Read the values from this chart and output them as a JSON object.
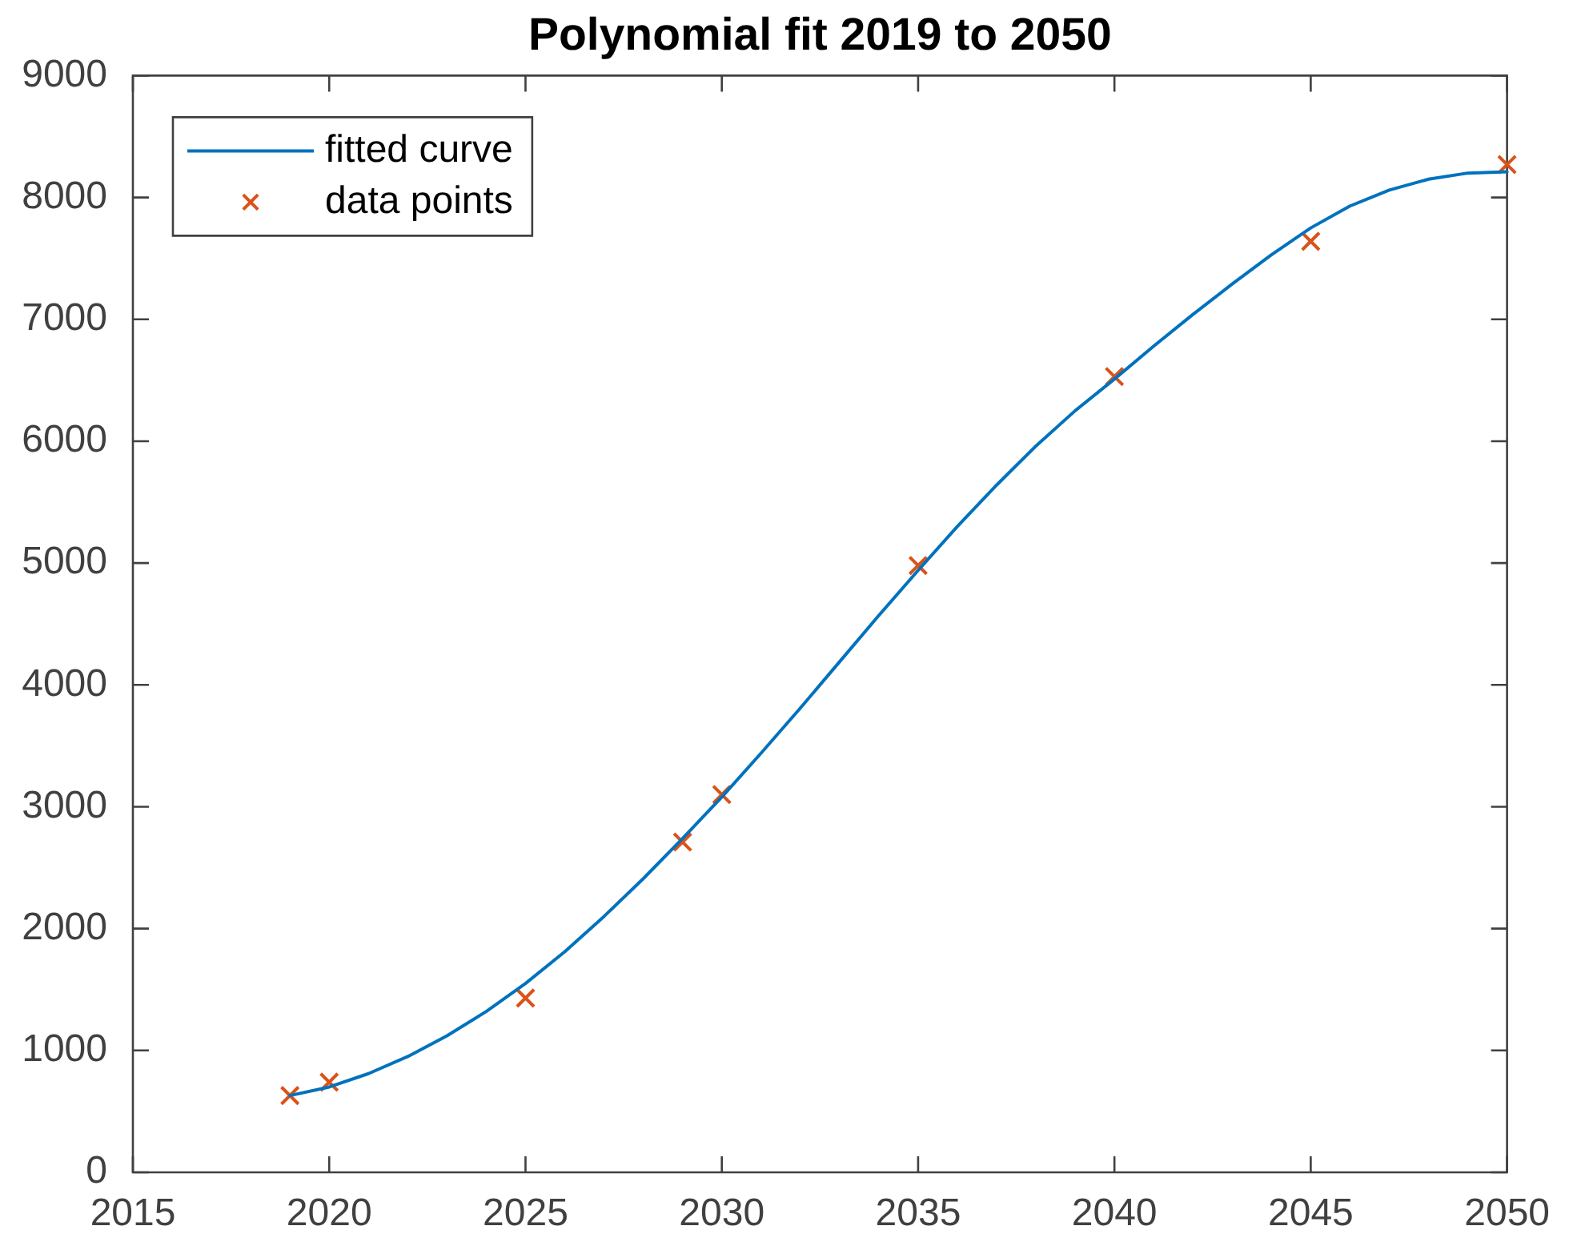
{
  "chart_data": {
    "type": "line",
    "title": "Polynomial fit 2019 to 2050",
    "xlim": [
      2015,
      2050
    ],
    "xticks": [
      2015,
      2020,
      2025,
      2030,
      2035,
      2040,
      2045,
      2050
    ],
    "ylim": [
      0,
      9000
    ],
    "yticks": [
      0,
      1000,
      2000,
      3000,
      4000,
      5000,
      6000,
      7000,
      8000,
      9000
    ],
    "grid": false,
    "legend": "top left",
    "series": [
      {
        "name": "fitted curve",
        "type": "line",
        "color": "#0072bd",
        "marker": "none",
        "x": [
          2019,
          2020,
          2021,
          2022,
          2023,
          2024,
          2025,
          2026,
          2027,
          2028,
          2029,
          2030,
          2031,
          2032,
          2033,
          2034,
          2035,
          2036,
          2037,
          2038,
          2039,
          2040,
          2041,
          2042,
          2043,
          2044,
          2045,
          2046,
          2047,
          2048,
          2049,
          2050
        ],
        "values": [
          630,
          700,
          810,
          950,
          1120,
          1320,
          1550,
          1810,
          2100,
          2410,
          2740,
          3080,
          3440,
          3810,
          4190,
          4570,
          4940,
          5300,
          5640,
          5960,
          6250,
          6510,
          6780,
          7040,
          7290,
          7530,
          7750,
          7930,
          8060,
          8150,
          8200,
          8210
        ]
      },
      {
        "name": "data points",
        "type": "scatter",
        "color": "#d95319",
        "marker": "cross",
        "x": [
          2019,
          2020,
          2025,
          2029,
          2030,
          2035,
          2040,
          2045,
          2050
        ],
        "values": [
          630,
          740,
          1430,
          2710,
          3100,
          4980,
          6530,
          7640,
          8270
        ]
      }
    ]
  }
}
